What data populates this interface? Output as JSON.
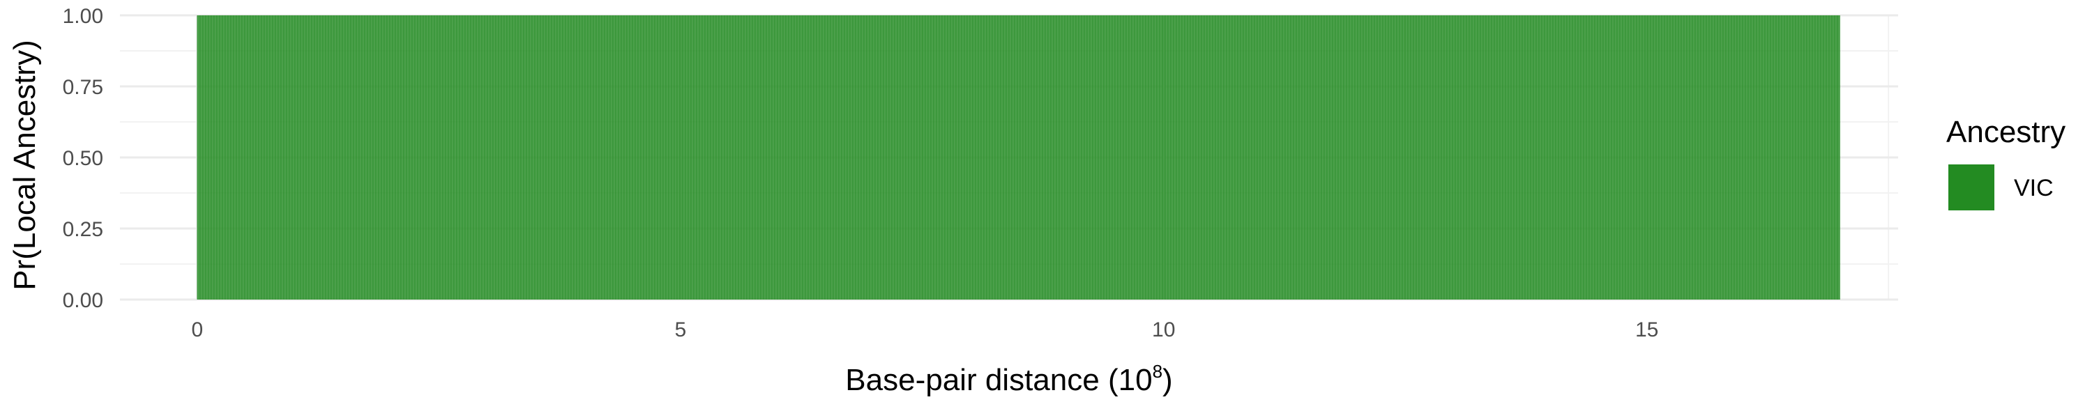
{
  "chart_data": {
    "type": "area",
    "title": "",
    "xlabel": "Base-pair distance",
    "xlabel_unit_base": "10",
    "xlabel_unit_exponent": "8",
    "ylabel": "Pr(Local Ancestry)",
    "xlim": [
      -0.8,
      17.6
    ],
    "ylim": [
      0,
      1
    ],
    "x_ticks": [
      0,
      5,
      10,
      15
    ],
    "x_tick_labels": [
      "0",
      "5",
      "10",
      "15"
    ],
    "y_ticks": [
      0,
      0.25,
      0.5,
      0.75,
      1
    ],
    "y_tick_labels": [
      "0.00",
      "0.25",
      "0.50",
      "0.75",
      "1.00"
    ],
    "grid": true,
    "legend_position": "right",
    "legend_title": "Ancestry",
    "series": [
      {
        "name": "VIC",
        "color": "#238b22",
        "x": [
          0,
          17
        ],
        "values": [
          1,
          1
        ]
      }
    ]
  }
}
